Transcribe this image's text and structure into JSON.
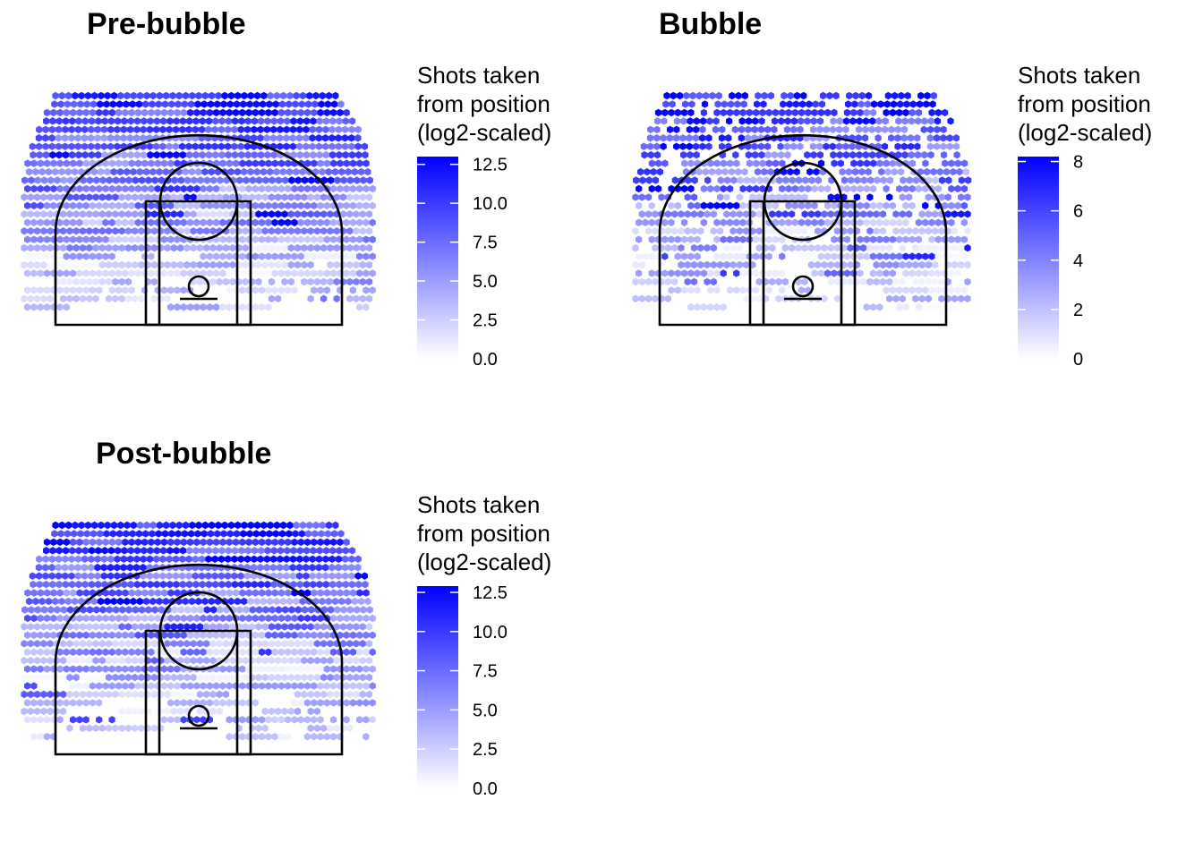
{
  "chart_data": [
    {
      "type": "heatmap",
      "title": "Pre-bubble",
      "legend": {
        "title_lines": [
          "Shots taken",
          "from position",
          "(log2-scaled)"
        ],
        "range": [
          0,
          13.0
        ],
        "ticks": [
          "0.0",
          "2.5",
          "5.0",
          "7.5",
          "10.0",
          "12.5"
        ],
        "tick_values": [
          0,
          2.5,
          5.0,
          7.5,
          10.0,
          12.5
        ]
      },
      "colors": {
        "low": "#ffffff",
        "high": "#0000ff"
      },
      "max_value": 12.8
    },
    {
      "type": "heatmap",
      "title": "Bubble",
      "legend": {
        "title_lines": [
          "Shots taken",
          "from position",
          "(log2-scaled)"
        ],
        "range": [
          0,
          8.2
        ],
        "ticks": [
          "0",
          "2",
          "4",
          "6",
          "8"
        ],
        "tick_values": [
          0,
          2,
          4,
          6,
          8
        ]
      },
      "colors": {
        "low": "#ffffff",
        "high": "#0000ff"
      },
      "max_value": 8.2
    },
    {
      "type": "heatmap",
      "title": "Post-bubble",
      "legend": {
        "title_lines": [
          "Shots taken",
          "from position",
          "(log2-scaled)"
        ],
        "range": [
          0,
          12.9
        ],
        "ticks": [
          "0.0",
          "2.5",
          "5.0",
          "7.5",
          "10.0",
          "12.5"
        ],
        "tick_values": [
          0,
          2.5,
          5.0,
          7.5,
          10.0,
          12.5
        ]
      },
      "colors": {
        "low": "#ffffff",
        "high": "#0000ff"
      },
      "max_value": 12.9
    }
  ]
}
